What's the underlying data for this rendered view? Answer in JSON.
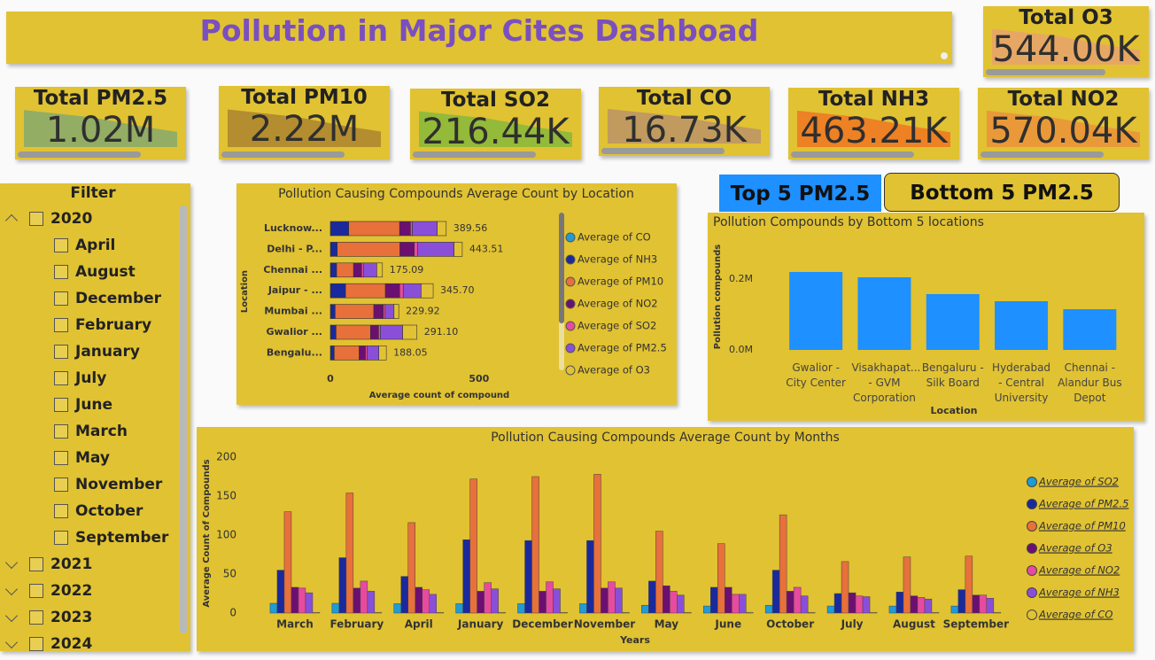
{
  "header": {
    "title": "Pollution in Major Cites Dashboad"
  },
  "kpis": [
    {
      "label": "Total O3",
      "value": "544.00K"
    },
    {
      "label": "Total PM2.5",
      "value": "1.02M"
    },
    {
      "label": "Total PM10",
      "value": "2.22M"
    },
    {
      "label": "Total SO2",
      "value": "216.44K"
    },
    {
      "label": "Total CO",
      "value": "16.73K"
    },
    {
      "label": "Total NH3",
      "value": "463.21K"
    },
    {
      "label": "Total NO2",
      "value": "570.04K"
    }
  ],
  "filter": {
    "title": "Filter",
    "years": [
      {
        "label": "2020",
        "months": [
          "April",
          "August",
          "December",
          "February",
          "January",
          "July",
          "June",
          "March",
          "May",
          "November",
          "October",
          "September"
        ]
      },
      {
        "label": "2021"
      },
      {
        "label": "2022"
      },
      {
        "label": "2023"
      },
      {
        "label": "2024"
      }
    ]
  },
  "buttons": [
    "Top 5 PM2.5",
    "Bottom 5 PM2.5"
  ],
  "chart_data": [
    {
      "type": "stackedbar",
      "title": "Pollution Causing Compounds Average Count by Location",
      "x_label": "Average count of compound",
      "y_label": "Location",
      "categories": [
        "Lucknow...",
        "Delhi - P...",
        "Chennai ...",
        "Jaipur - ...",
        "Mumbai ...",
        "Gwalior ...",
        "Bengalu..."
      ],
      "series": [
        {
          "name": "Average of CO",
          "color": "#1f9bd6",
          "values": [
            1.2,
            1.0,
            1.0,
            1.0,
            1.0,
            1.0,
            1.0
          ]
        },
        {
          "name": "Average of NH3",
          "color": "#1a2a9c",
          "values": [
            60.5,
            22.0,
            20.0,
            50.0,
            15.0,
            18.0,
            12.0
          ]
        },
        {
          "name": "Average of PM10",
          "color": "#e8703a",
          "values": [
            171.3,
            211.0,
            57.0,
            134.0,
            130.0,
            116.0,
            84.0
          ]
        },
        {
          "name": "Average of NO2",
          "color": "#6b1070",
          "values": [
            36.2,
            48.0,
            27.0,
            48.0,
            32.0,
            27.0,
            21.0
          ]
        },
        {
          "name": "Average of SO2",
          "color": "#e84a9f",
          "values": [
            6.4,
            12.0,
            6.0,
            12.0,
            6.0,
            6.0,
            6.0
          ]
        },
        {
          "name": "Average of PM2.5",
          "color": "#8a4fd8",
          "values": [
            83.6,
            122.0,
            45.0,
            60.0,
            30.0,
            75.0,
            39.0
          ]
        },
        {
          "name": "Average of O3",
          "color": "#e2c234",
          "values": [
            30.36,
            27.51,
            19.09,
            40.7,
            15.92,
            48.1,
            25.05
          ]
        }
      ],
      "totals": [
        389.56,
        443.51,
        175.09,
        345.7,
        229.92,
        291.1,
        188.05
      ],
      "total_labels": [
        "389.56",
        "443.51",
        "175.09",
        "345.70",
        "229.92",
        "291.10",
        "188.05"
      ],
      "xlim": [
        0,
        560
      ],
      "xticks": [
        0,
        500
      ],
      "legend": "right"
    },
    {
      "type": "bar",
      "title": "Pollution Compounds by Bottom 5 locations",
      "x_label": "Location",
      "y_label": "Pollution compounds",
      "categories": [
        "Gwalior - City Center",
        "Visakhapat... - GVM Corporation",
        "Bengaluru - Silk Board",
        "Hyderabad - Central University",
        "Chennai - Alandur Bus Depot"
      ],
      "values": [
        220000,
        205000,
        157500,
        137500,
        115000
      ],
      "color": "#1e90ff",
      "ylim": [
        0,
        260000
      ],
      "yticks": [
        {
          "value": 0,
          "label": "0.0M"
        },
        {
          "value": 200000,
          "label": "0.2M"
        }
      ]
    },
    {
      "type": "groupedbar",
      "title": "Pollution Causing Compounds Average Count by Months",
      "x_label": "Years",
      "y_label": "Average Count of Compounds",
      "categories": [
        "March",
        "February",
        "April",
        "January",
        "December",
        "November",
        "May",
        "June",
        "October",
        "July",
        "August",
        "September"
      ],
      "series": [
        {
          "name": "Average of SO2",
          "color": "#1f9bd6",
          "values": [
            12.5,
            12.5,
            12,
            12,
            12,
            12,
            10,
            9,
            10,
            9,
            9,
            9
          ]
        },
        {
          "name": "Average of PM2.5",
          "color": "#1a2a9c",
          "values": [
            55,
            71,
            47,
            94,
            93,
            93,
            41,
            33,
            55,
            25,
            27,
            30
          ]
        },
        {
          "name": "Average of PM10",
          "color": "#e8703a",
          "values": [
            130,
            154,
            116,
            172,
            175,
            178,
            105,
            89,
            126,
            66,
            72,
            73
          ]
        },
        {
          "name": "Average of O3",
          "color": "#6b1070",
          "values": [
            33,
            32,
            33,
            28,
            28,
            32,
            35,
            33,
            28,
            26,
            22,
            23
          ]
        },
        {
          "name": "Average of NO2",
          "color": "#e84a9f",
          "values": [
            32,
            41,
            30,
            39,
            40,
            40,
            28,
            24,
            33,
            22,
            20,
            23
          ]
        },
        {
          "name": "Average of NH3",
          "color": "#8a4fd8",
          "values": [
            26,
            28,
            24,
            31,
            31,
            32,
            23,
            24,
            22,
            21,
            18,
            19
          ]
        },
        {
          "name": "Average of CO",
          "color": "#e2c234",
          "values": [
            0.9,
            0.9,
            0.9,
            0.9,
            0.9,
            0.9,
            0.9,
            0.9,
            0.9,
            0.9,
            0.9,
            0.9
          ]
        }
      ],
      "ylim": [
        0,
        205
      ],
      "yticks": [
        0,
        50,
        100,
        150,
        200
      ],
      "legend": "right"
    }
  ]
}
